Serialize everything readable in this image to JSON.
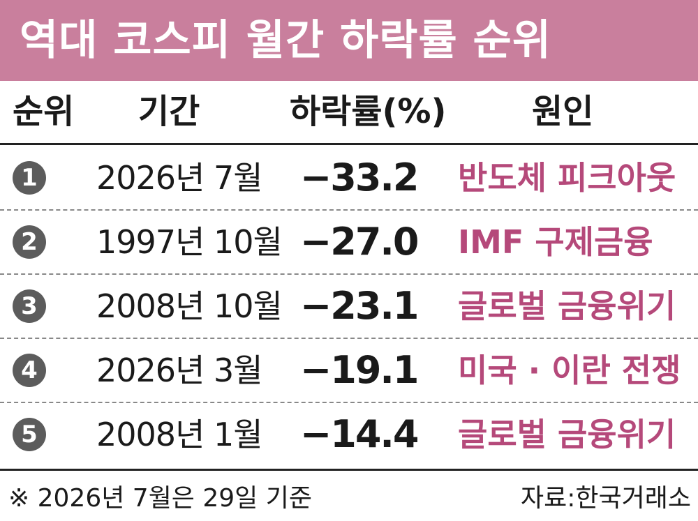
{
  "title": "역대 코스피 월간 하락률 순위",
  "columns": {
    "rank": "순위",
    "period": "기간",
    "rate": "하락률(%)",
    "cause": "원인"
  },
  "rows": [
    {
      "rank": "1",
      "period": "2026년 7월",
      "rate": "−33.2",
      "cause": "반도체 피크아웃"
    },
    {
      "rank": "2",
      "period": "1997년 10월",
      "rate": "−27.0",
      "cause": "IMF 구제금융"
    },
    {
      "rank": "3",
      "period": "2008년 10월",
      "rate": "−23.1",
      "cause": "글로벌 금융위기"
    },
    {
      "rank": "4",
      "period": "2026년 3월",
      "rate": "−19.1",
      "cause": "미국 · 이란 전쟁"
    },
    {
      "rank": "5",
      "period": "2008년 1월",
      "rate": "−14.4",
      "cause": "글로벌 금융위기"
    }
  ],
  "footnote": "※  2026년 7월은 29일 기준",
  "source": "자료:한국거래소",
  "colors": {
    "title_bg": "#c97f9d",
    "cause_text": "#b5497a",
    "rank_badge": "#5c5c5c"
  }
}
